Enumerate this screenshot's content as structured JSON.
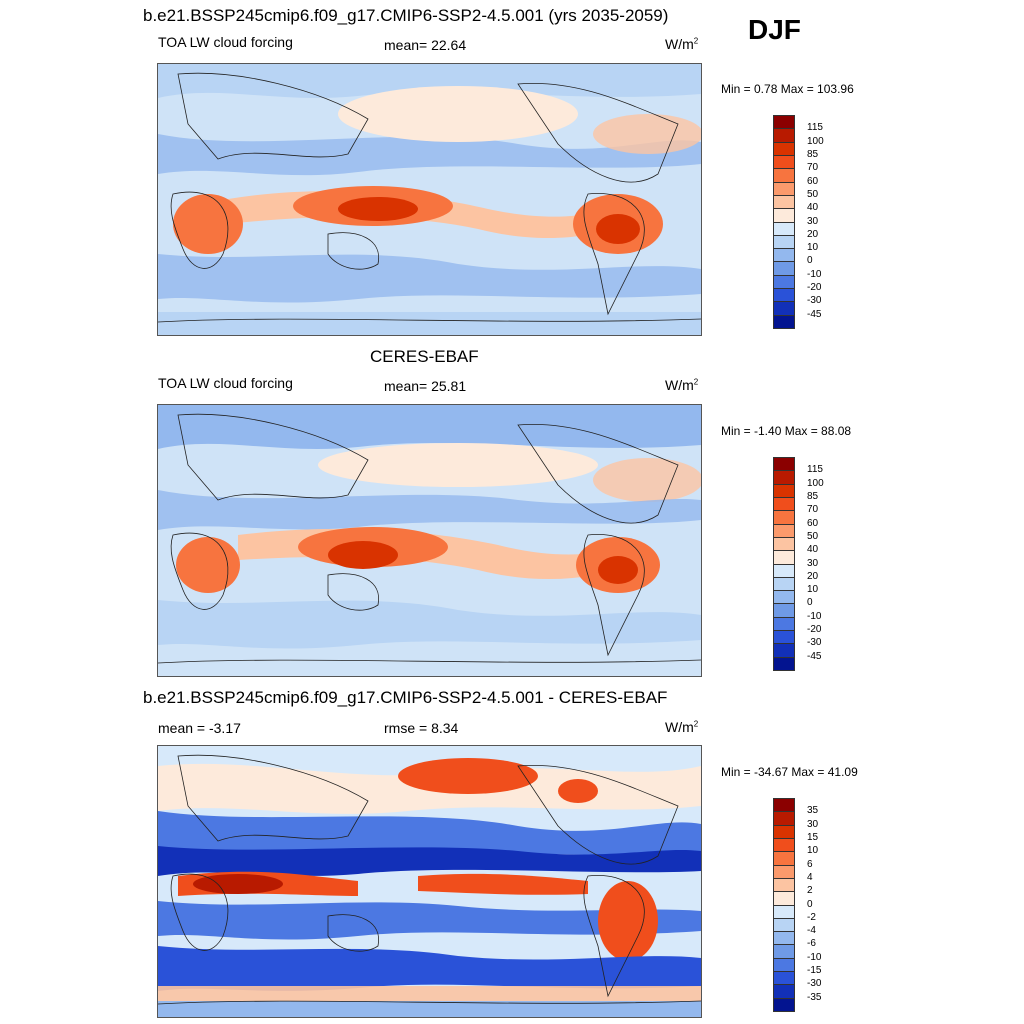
{
  "main_title": "b.e21.BSSP245cmip6.f09_g17.CMIP6-SSP2-4.5.001 (yrs 2035-2059)",
  "season": "DJF",
  "panels": [
    {
      "title": "",
      "variable": "TOA LW cloud forcing",
      "stat_label": "mean=",
      "stat_value": "22.64",
      "units": "W/m",
      "units_sup": "2",
      "range_text": "Min =   0.78 Max = 103.96",
      "colorbar": {
        "labels": [
          "115",
          "100",
          "85",
          "70",
          "60",
          "50",
          "40",
          "30",
          "20",
          "10",
          "0",
          "-10",
          "-20",
          "-30",
          "-45"
        ],
        "colors": [
          "#8b0000",
          "#b81a00",
          "#d93300",
          "#f04e1c",
          "#f7743f",
          "#fb9a6c",
          "#fcc4a2",
          "#fdeadb",
          "#d7e9fa",
          "#b8d4f4",
          "#93b8ee",
          "#6f9ae6",
          "#4c78e2",
          "#2a52d8",
          "#1230b8",
          "#031490"
        ]
      }
    },
    {
      "title": "CERES-EBAF",
      "variable": "TOA LW cloud forcing",
      "stat_label": "mean=",
      "stat_value": "25.81",
      "units": "W/m",
      "units_sup": "2",
      "range_text": "Min =  -1.40 Max =  88.08",
      "colorbar": {
        "labels": [
          "115",
          "100",
          "85",
          "70",
          "60",
          "50",
          "40",
          "30",
          "20",
          "10",
          "0",
          "-10",
          "-20",
          "-30",
          "-45"
        ],
        "colors": [
          "#8b0000",
          "#b81a00",
          "#d93300",
          "#f04e1c",
          "#f7743f",
          "#fb9a6c",
          "#fcc4a2",
          "#fdeadb",
          "#d7e9fa",
          "#b8d4f4",
          "#93b8ee",
          "#6f9ae6",
          "#4c78e2",
          "#2a52d8",
          "#1230b8",
          "#031490"
        ]
      }
    },
    {
      "title": "b.e21.BSSP245cmip6.f09_g17.CMIP6-SSP2-4.5.001 - CERES-EBAF",
      "variable": "",
      "stat_label": "mean =",
      "stat_value": "-3.17",
      "rmse_label": "rmse =",
      "rmse_value": "8.34",
      "units": "W/m",
      "units_sup": "2",
      "range_text": "Min = -34.67 Max =  41.09",
      "colorbar": {
        "labels": [
          "35",
          "30",
          "15",
          "10",
          "6",
          "4",
          "2",
          "0",
          "-2",
          "-4",
          "-6",
          "-10",
          "-15",
          "-30",
          "-35"
        ],
        "colors": [
          "#8b0000",
          "#b81a00",
          "#d93300",
          "#f04e1c",
          "#f7743f",
          "#fb9a6c",
          "#fcc4a2",
          "#fdeadb",
          "#d7e9fa",
          "#b8d4f4",
          "#93b8ee",
          "#6f9ae6",
          "#4c78e2",
          "#2a52d8",
          "#1230b8",
          "#031490"
        ]
      }
    }
  ]
}
